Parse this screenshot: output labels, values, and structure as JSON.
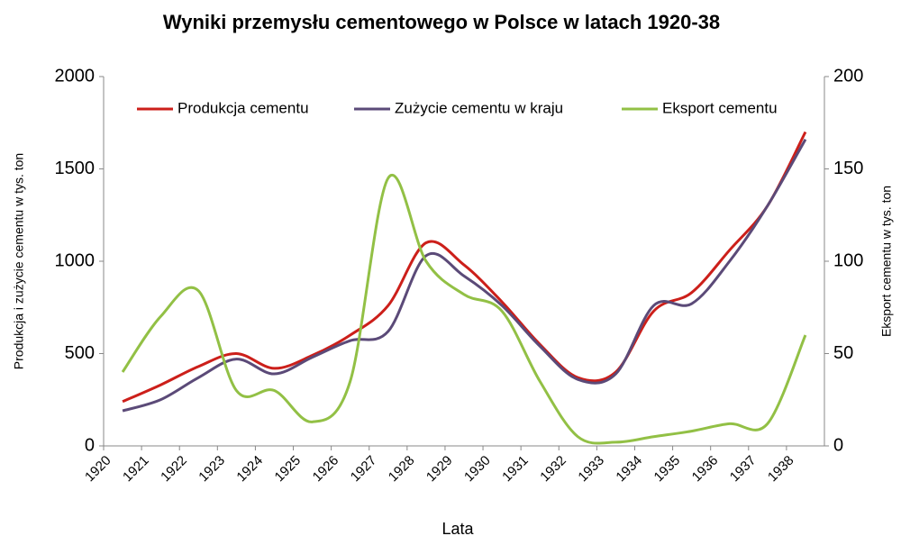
{
  "chart_data": {
    "type": "line",
    "title": "Wyniki przemysłu cementowego w Polsce w latach 1920-38",
    "x_label": "Lata",
    "y_label": "Produkcja i zużycie cementu w tys. ton",
    "y2_label": "Eksport cementu w tys. ton",
    "categories": [
      "1920",
      "1921",
      "1922",
      "1923",
      "1924",
      "1925",
      "1926",
      "1927",
      "1928",
      "1929",
      "1930",
      "1931",
      "1932",
      "1933",
      "1934",
      "1935",
      "1936",
      "1937",
      "1938"
    ],
    "series": [
      {
        "name": "Produkcja cementu",
        "color": "#cc1f1a",
        "values": [
          240,
          330,
          430,
          500,
          420,
          490,
          600,
          760,
          1100,
          980,
          780,
          550,
          370,
          400,
          730,
          830,
          1060,
          1300,
          1700
        ]
      },
      {
        "name": "Zużycie cementu w kraju",
        "color": "#5b4a78",
        "values": [
          190,
          250,
          370,
          470,
          390,
          480,
          570,
          620,
          1030,
          920,
          760,
          540,
          360,
          390,
          760,
          770,
          1000,
          1300,
          1660
        ]
      },
      {
        "name": "Eksport cementu",
        "color": "#92c045",
        "axis": "y2",
        "values": [
          40,
          70,
          84,
          30,
          30,
          13,
          35,
          145,
          100,
          82,
          73,
          35,
          5,
          2,
          5,
          8,
          12,
          12,
          60
        ]
      }
    ],
    "ylim": [
      0,
      2000
    ],
    "yticks": [
      0,
      500,
      1000,
      1500,
      2000
    ],
    "y2lim": [
      0,
      200
    ],
    "y2ticks": [
      0,
      50,
      100,
      150,
      200
    ],
    "legend": "top",
    "grid": false
  }
}
